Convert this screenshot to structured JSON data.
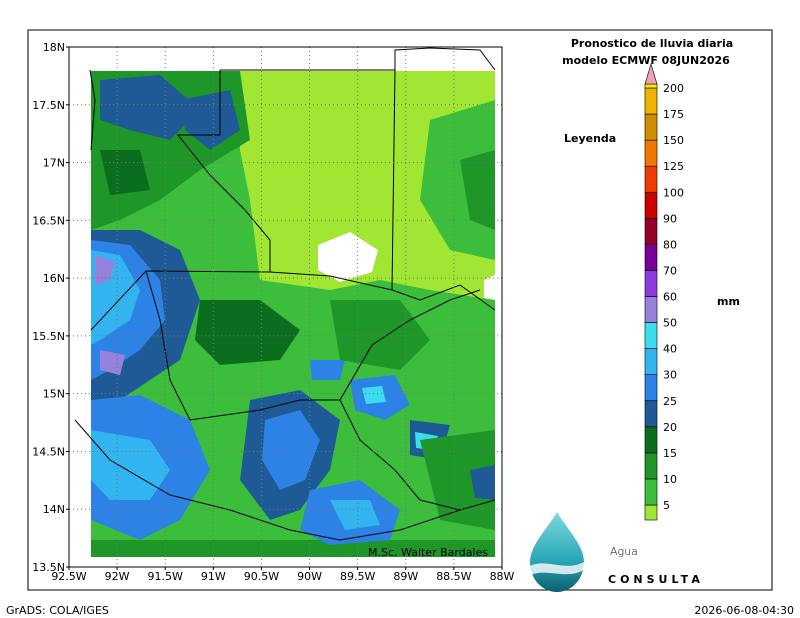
{
  "title": {
    "line1": "Pronostico de lluvia diaria",
    "line2": "modelo ECMWF   08JUN2026"
  },
  "legend": {
    "heading": "Leyenda",
    "unit": "mm",
    "levels": [
      "5",
      "10",
      "15",
      "20",
      "25",
      "30",
      "40",
      "50",
      "60",
      "70",
      "80",
      "90",
      "100",
      "125",
      "150",
      "175",
      "200"
    ],
    "colors": [
      "#a0e632",
      "#3cbe3c",
      "#1e9628",
      "#0a6e1e",
      "#1e5a96",
      "#2d82e6",
      "#32b4f0",
      "#3cdcf0",
      "#9682dc",
      "#8c3cdc",
      "#780096",
      "#960028",
      "#c80000",
      "#f03c00",
      "#f07800",
      "#d28c00",
      "#f0b400",
      "#f0f000"
    ],
    "over_color": "#f0a0b4"
  },
  "map": {
    "lat_ticks": [
      "18N",
      "17.5N",
      "17N",
      "16.5N",
      "16N",
      "15.5N",
      "15N",
      "14.5N",
      "14N",
      "13.5N"
    ],
    "lon_ticks": [
      "92.5W",
      "92W",
      "91.5W",
      "91W",
      "90.5W",
      "90W",
      "89.5W",
      "89W",
      "88.5W",
      "88W"
    ],
    "credit": "M.Sc. Walter Bardales"
  },
  "logo": {
    "word": "Agua",
    "sub": "CONSULTA"
  },
  "footer": {
    "left": "GrADS: COLA/IGES",
    "right": "2026-06-08-04:30"
  }
}
